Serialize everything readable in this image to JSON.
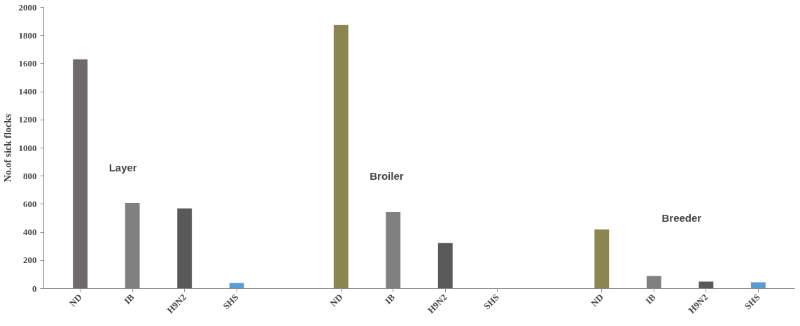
{
  "chart_data": {
    "type": "bar",
    "ylabel": "No.of sick flocks",
    "categories": [
      "ND",
      "IB",
      "H9N2",
      "SHS",
      null,
      "ND",
      "IB",
      "H9N2",
      "SHS",
      null,
      "ND",
      "IB",
      "H9N2",
      "SHS"
    ],
    "values": [
      1630,
      610,
      570,
      40,
      null,
      1875,
      545,
      325,
      0,
      null,
      420,
      90,
      50,
      45
    ],
    "colors": [
      "#6f6a69",
      "#808080",
      "#595959",
      "#5b9bd5",
      null,
      "#8b8650",
      "#808080",
      "#595959",
      "#5b9bd5",
      null,
      "#8b8650",
      "#808080",
      "#595959",
      "#5b9bd5"
    ],
    "ylim": [
      0,
      2000
    ],
    "yticks": [
      0,
      200,
      400,
      600,
      800,
      1000,
      1200,
      1400,
      1600,
      1800,
      2000
    ],
    "annotations": [
      "Layer",
      "Broiler",
      "Breeder"
    ],
    "grid": false
  }
}
